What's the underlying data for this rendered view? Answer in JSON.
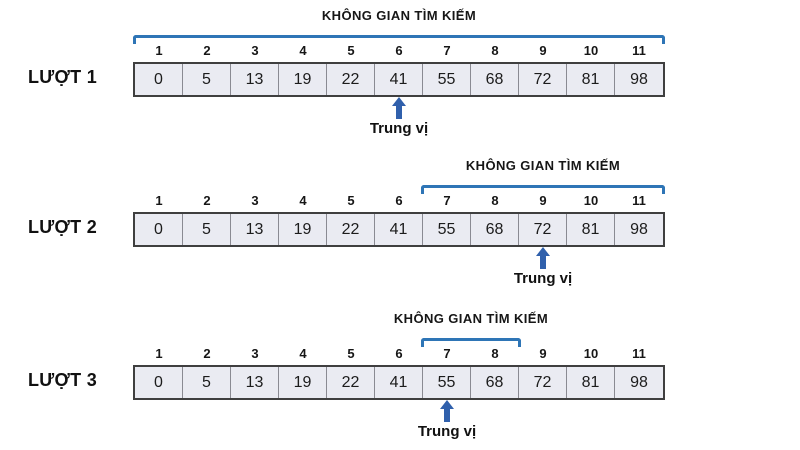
{
  "diagram": {
    "search_space_label": "KHÔNG GIAN TÌM KIẾM",
    "median_label": "Trung vị",
    "indices": [
      "1",
      "2",
      "3",
      "4",
      "5",
      "6",
      "7",
      "8",
      "9",
      "10",
      "11"
    ],
    "values": [
      "0",
      "5",
      "13",
      "19",
      "22",
      "41",
      "55",
      "68",
      "72",
      "81",
      "98"
    ],
    "rounds": [
      {
        "label": "LƯỢT 1",
        "search_space_start": 1,
        "search_space_end": 11,
        "median_index": 6,
        "median_value": 41
      },
      {
        "label": "LƯỢT 2",
        "search_space_start": 7,
        "search_space_end": 11,
        "median_index": 9,
        "median_value": 72
      },
      {
        "label": "LƯỢT 3",
        "search_space_start": 7,
        "search_space_end": 8,
        "median_index": 7,
        "median_value": 55
      }
    ],
    "colors": {
      "bracket_blue": "#2E75B6",
      "arrow_blue": "#3060AC",
      "cell_fill": "#EAEBF2",
      "cell_border_outer": "#3F3F3F",
      "cell_divider": "#8A8A92",
      "text": "#1A1A1A"
    }
  }
}
